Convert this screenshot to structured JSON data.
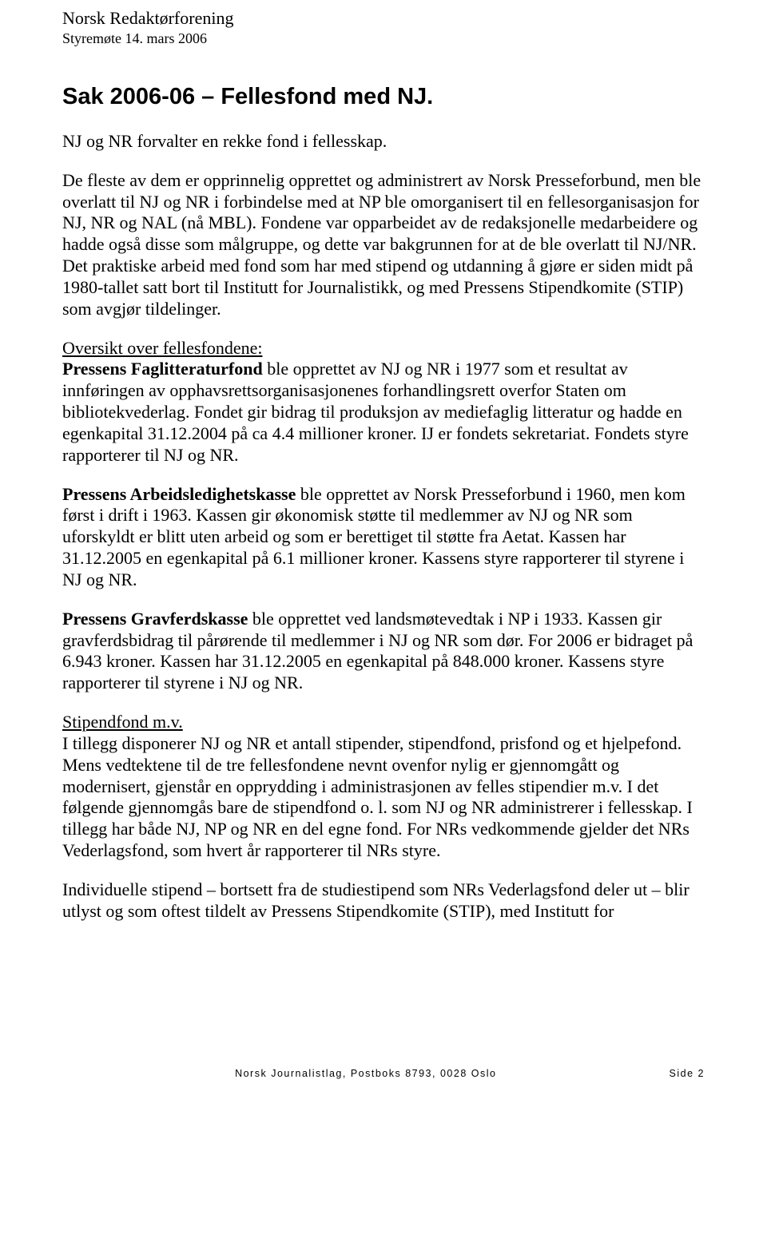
{
  "header": {
    "org": "Norsk Redaktørforening",
    "meeting": "Styremøte 14. mars 2006"
  },
  "title": "Sak 2006-06 – Fellesfond med NJ.",
  "paragraphs": {
    "p1": "NJ og NR forvalter en rekke fond i fellesskap.",
    "p2": "De fleste av dem er opprinnelig opprettet og administrert av Norsk Presseforbund, men ble overlatt til NJ og NR i forbindelse med at NP ble omorganisert til en fellesorganisasjon for NJ, NR og NAL (nå MBL). Fondene var opparbeidet av de redaksjonelle medarbeidere og hadde også disse som målgruppe, og dette var bakgrunnen for at de ble overlatt til NJ/NR. Det praktiske arbeid med fond som har med stipend og utdanning å gjøre er siden midt på 1980-tallet satt bort til Institutt for Journalistikk, og med Pressens Stipendkomite (STIP) som avgjør tildelinger.",
    "p3_heading": "Oversikt over fellesfondene:",
    "p3_lead": "Pressens Faglitteraturfond",
    "p3_rest": " ble opprettet av NJ og NR i 1977 som et resultat av innføringen av opphavsrettsorganisasjonenes forhandlingsrett overfor Staten om bibliotekvederlag. Fondet gir bidrag til produksjon av mediefaglig litteratur og hadde en egenkapital 31.12.2004 på ca 4.4 millioner kroner. IJ er fondets sekretariat. Fondets styre rapporterer til NJ og NR.",
    "p4_lead": "Pressens Arbeidsledighetskasse",
    "p4_rest": " ble opprettet av Norsk Presseforbund i 1960, men kom først i drift i 1963. Kassen gir økonomisk støtte til medlemmer av NJ og NR som uforskyldt er blitt uten arbeid og som er berettiget til støtte fra Aetat. Kassen har 31.12.2005 en egenkapital på 6.1 millioner kroner. Kassens styre rapporterer til styrene i NJ og NR.",
    "p5_lead": "Pressens Gravferdskasse",
    "p5_rest": " ble opprettet ved landsmøtevedtak i NP i 1933. Kassen gir gravferdsbidrag til pårørende til medlemmer i NJ og NR som dør. For 2006 er bidraget på 6.943 kroner. Kassen har 31.12.2005 en egenkapital på 848.000 kroner. Kassens styre rapporterer til styrene i NJ og NR.",
    "p6_heading": "Stipendfond m.v.",
    "p6_body": "I tillegg disponerer NJ og NR et antall stipender, stipendfond, prisfond og et hjelpefond. Mens vedtektene til de tre fellesfondene nevnt ovenfor nylig er gjennomgått og modernisert, gjenstår en opprydding i administrasjonen av felles stipendier m.v. I det følgende gjennomgås bare de stipendfond o. l. som NJ og NR administrerer i fellesskap. I tillegg har både NJ, NP og NR en del egne fond. For NRs vedkommende gjelder det NRs Vederlagsfond, som hvert år rapporterer til NRs styre.",
    "p7": "Individuelle stipend – bortsett fra de studiestipend som NRs Vederlagsfond deler ut – blir utlyst og som oftest tildelt av Pressens Stipendkomite (STIP), med Institutt for"
  },
  "footer": {
    "center": "Norsk Journalistlag, Postboks 8793, 0028 Oslo",
    "right": "Side 2"
  }
}
